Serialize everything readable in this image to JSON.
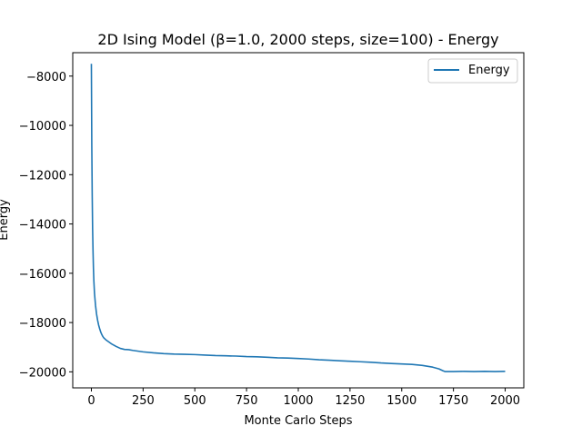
{
  "chart_data": {
    "type": "line",
    "title": "2D Ising Model (β=1.0, 2000 steps, size=100) - Energy",
    "xlabel": "Monte Carlo Steps",
    "ylabel": "Energy",
    "xlim": [
      -90,
      2090
    ],
    "ylim": [
      -20650,
      -7050
    ],
    "xticks": [
      0,
      250,
      500,
      750,
      1000,
      1250,
      1500,
      1750,
      2000
    ],
    "yticks": [
      -20000,
      -18000,
      -16000,
      -14000,
      -12000,
      -10000,
      -8000
    ],
    "xtick_labels": [
      "0",
      "250",
      "500",
      "750",
      "1000",
      "1250",
      "1500",
      "1750",
      "2000"
    ],
    "ytick_labels": [
      "−20000",
      "−18000",
      "−16000",
      "−14000",
      "−12000",
      "−10000",
      "−8000"
    ],
    "grid": false,
    "legend_position": "top-right",
    "series": [
      {
        "name": "Energy",
        "color": "#1f77b4",
        "x": [
          0,
          2,
          4,
          6,
          8,
          10,
          12,
          15,
          18,
          20,
          25,
          30,
          35,
          40,
          45,
          50,
          55,
          60,
          70,
          80,
          90,
          100,
          120,
          140,
          160,
          180,
          200,
          250,
          300,
          350,
          400,
          450,
          500,
          550,
          600,
          650,
          700,
          750,
          800,
          850,
          900,
          950,
          1000,
          1050,
          1100,
          1150,
          1200,
          1250,
          1300,
          1350,
          1400,
          1450,
          1500,
          1550,
          1600,
          1650,
          1680,
          1700,
          1710,
          1720,
          1750,
          1800,
          1850,
          1900,
          1950,
          2000
        ],
        "y": [
          -7500,
          -10800,
          -12800,
          -14200,
          -15100,
          -15800,
          -16300,
          -16800,
          -17100,
          -17300,
          -17650,
          -17900,
          -18100,
          -18250,
          -18380,
          -18480,
          -18560,
          -18620,
          -18700,
          -18760,
          -18820,
          -18880,
          -18970,
          -19050,
          -19090,
          -19100,
          -19130,
          -19190,
          -19230,
          -19260,
          -19280,
          -19290,
          -19300,
          -19320,
          -19340,
          -19350,
          -19360,
          -19380,
          -19390,
          -19410,
          -19430,
          -19440,
          -19460,
          -19480,
          -19510,
          -19530,
          -19550,
          -19570,
          -19590,
          -19610,
          -19640,
          -19660,
          -19680,
          -19700,
          -19740,
          -19810,
          -19880,
          -19960,
          -19990,
          -19990,
          -19990,
          -19980,
          -19990,
          -19980,
          -19990,
          -19980
        ]
      }
    ]
  }
}
